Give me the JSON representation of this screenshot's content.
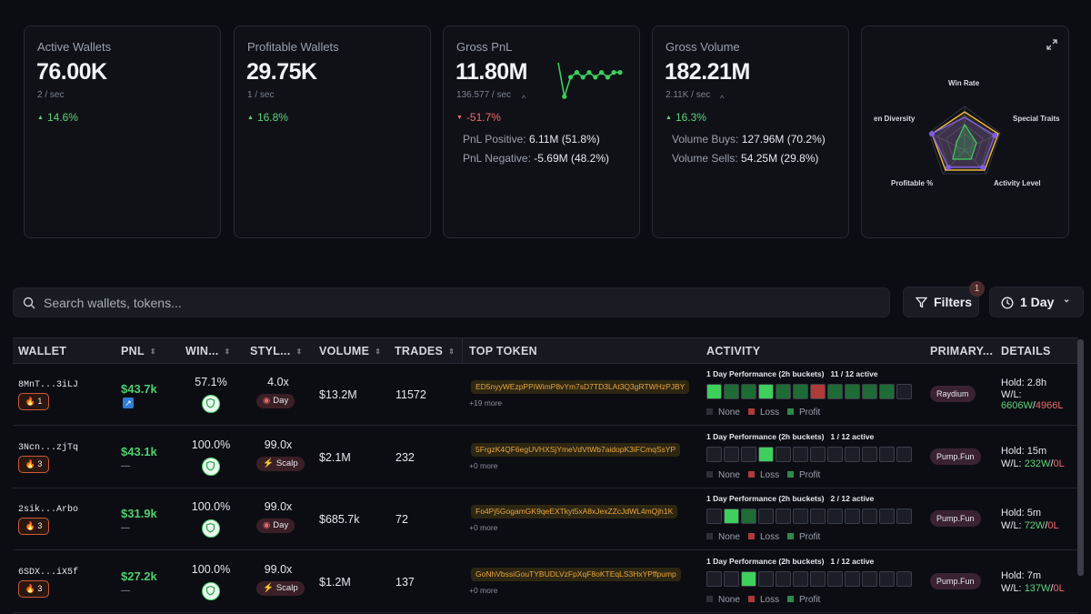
{
  "stats": [
    {
      "label": "Active Wallets",
      "value": "76.00K",
      "rate": "2 / sec",
      "change": "14.6%",
      "dir": "up"
    },
    {
      "label": "Profitable Wallets",
      "value": "29.75K",
      "rate": "1 / sec",
      "change": "16.8%",
      "dir": "up"
    },
    {
      "label": "Gross PnL",
      "value": "11.80M",
      "rate": "136.577 / sec",
      "change": "-51.7%",
      "dir": "down",
      "sub1_label": "PnL Positive:",
      "sub1_value": "6.11M (51.8%)",
      "sub2_label": "PnL Negative:",
      "sub2_value": "-5.69M (48.2%)",
      "spark": [
        9,
        2,
        6,
        7,
        6,
        7,
        6,
        7,
        6,
        7,
        7
      ]
    },
    {
      "label": "Gross Volume",
      "value": "182.21M",
      "rate": "2.11K / sec",
      "change": "16.3%",
      "dir": "up",
      "sub1_label": "Volume Buys:",
      "sub1_value": "127.96M (70.2%)",
      "sub2_label": "Volume Sells:",
      "sub2_value": "54.25M (29.8%)"
    }
  ],
  "radar": {
    "labels": [
      "Win Rate",
      "Special Traits",
      "Activity Level",
      "Profitable %",
      "en Diversity"
    ]
  },
  "search": {
    "placeholder": "Search wallets, tokens..."
  },
  "filters": {
    "label": "Filters",
    "badge": "1"
  },
  "timeframe": {
    "label": "1 Day"
  },
  "columns": [
    "WALLET",
    "PNL",
    "WIN...",
    "STYL...",
    "VOLUME",
    "TRADES",
    "TOP TOKEN",
    "ACTIVITY",
    "PRIMARY...",
    "DETAILS"
  ],
  "legend": {
    "none": "None",
    "loss": "Loss",
    "profit": "Profit"
  },
  "rows": [
    {
      "wallet": "8MnT...3iLJ",
      "rank": "1",
      "pnl": "$43.7k",
      "win": "57.1%",
      "lev": "4.0x",
      "style": "Day",
      "volume": "$13.2M",
      "trades": "11572",
      "token": "ED5nyyWEzpPPiWimP8vYm7sD7TD3LAt3Q3gRTWHzPJBY",
      "more": "+19 more",
      "perf_title": "1 Day Performance (2h buckets)",
      "perf_active": "11 / 12 active",
      "cells": [
        "p",
        "g",
        "g",
        "p",
        "g",
        "g",
        "l",
        "g",
        "g",
        "g",
        "g",
        "n"
      ],
      "platform": "Raydium",
      "hold": "Hold: 2.8h",
      "wl_label": "W/L:",
      "w": "6606W",
      "sep": "/",
      "l": "4966L",
      "boost": true
    },
    {
      "wallet": "3Ncn...zjTq",
      "rank": "3",
      "pnl": "$43.1k",
      "pnl_sub": "—",
      "win": "100.0%",
      "lev": "99.0x",
      "style": "Scalp",
      "volume": "$2.1M",
      "trades": "232",
      "token": "5FrgzK4QF6egUVHXSjYmeVdVtWb7aidopK3iFCmqSsYP",
      "more": "+0 more",
      "perf_title": "1 Day Performance (2h buckets)",
      "perf_active": "1 / 12 active",
      "cells": [
        "n",
        "n",
        "n",
        "p",
        "n",
        "n",
        "n",
        "n",
        "n",
        "n",
        "n",
        "n"
      ],
      "platform": "Pump.Fun",
      "hold": "Hold: 15m",
      "wl_label": "W/L:",
      "w": "232W",
      "sep": "/",
      "l": "0L"
    },
    {
      "wallet": "2sik...Arbo",
      "rank": "3",
      "pnl": "$31.9k",
      "pnl_sub": "—",
      "win": "100.0%",
      "lev": "99.0x",
      "style": "Day",
      "volume": "$685.7k",
      "trades": "72",
      "token": "Fo4Pj5GogamGK9qeEXTkyt5xA8xJexZZcJdWL4mQjh1K",
      "more": "+0 more",
      "perf_title": "1 Day Performance (2h buckets)",
      "perf_active": "2 / 12 active",
      "cells": [
        "n",
        "p",
        "g",
        "n",
        "n",
        "n",
        "n",
        "n",
        "n",
        "n",
        "n",
        "n"
      ],
      "platform": "Pump.Fun",
      "hold": "Hold: 5m",
      "wl_label": "W/L:",
      "w": "72W",
      "sep": "/",
      "l": "0L"
    },
    {
      "wallet": "6SDX...iX5f",
      "rank": "3",
      "pnl": "$27.2k",
      "pnl_sub": "—",
      "win": "100.0%",
      "lev": "99.0x",
      "style": "Scalp",
      "volume": "$1.2M",
      "trades": "137",
      "token": "GoNhVbssiGouTYBUDLVzFpXqF8oKTEqLS3HxYPffpump",
      "more": "+0 more",
      "perf_title": "1 Day Performance (2h buckets)",
      "perf_active": "1 / 12 active",
      "cells": [
        "n",
        "n",
        "p",
        "n",
        "n",
        "n",
        "n",
        "n",
        "n",
        "n",
        "n",
        "n"
      ],
      "platform": "Pump.Fun",
      "hold": "Hold: 7m",
      "wl_label": "W/L:",
      "w": "137W",
      "sep": "/",
      "l": "0L"
    }
  ],
  "colors": {
    "profit": "#3ecf5c",
    "profit_dim": "#1f6b36",
    "loss": "#b03a3a",
    "none": "#1b1e26",
    "accent": "#4fcf6e",
    "down": "#f06a6a"
  }
}
